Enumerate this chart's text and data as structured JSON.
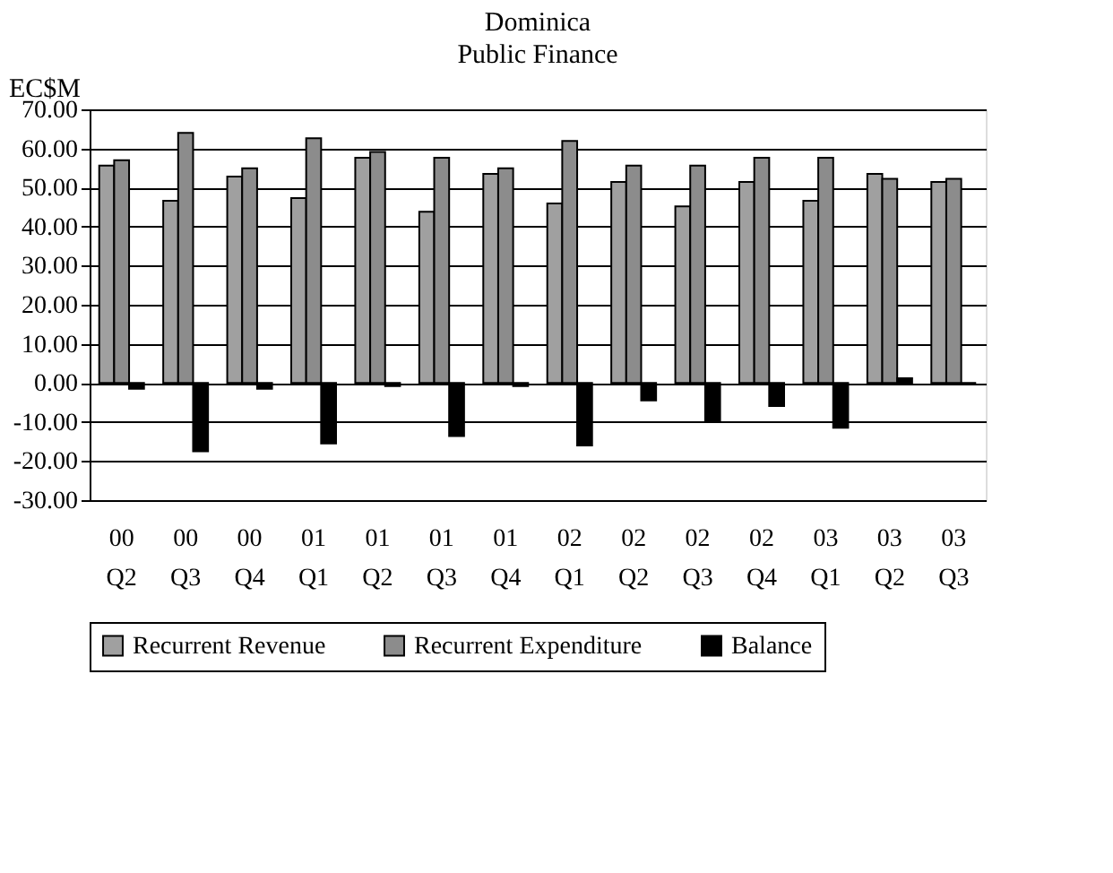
{
  "chart_data": {
    "type": "bar",
    "title": "Dominica",
    "subtitle": "Public Finance",
    "ylabel": "EC$M",
    "categories": [
      "00 Q2",
      "00 Q3",
      "00 Q4",
      "01 Q1",
      "01 Q2",
      "01 Q3",
      "01 Q4",
      "02 Q1",
      "02 Q2",
      "02 Q3",
      "02 Q4",
      "03 Q1",
      "03 Q2",
      "03 Q3"
    ],
    "series": [
      {
        "name": "Recurrent Revenue",
        "color": "#a0a0a0",
        "values": [
          55.6,
          46.6,
          52.8,
          47.3,
          57.6,
          43.8,
          53.5,
          45.9,
          51.4,
          45.2,
          51.4,
          46.6,
          53.5,
          51.4
        ]
      },
      {
        "name": "Recurrent Expenditure",
        "color": "#8c8c8c",
        "values": [
          57.0,
          64.0,
          54.9,
          62.6,
          59.1,
          57.6,
          54.9,
          61.9,
          55.6,
          55.6,
          57.6,
          57.6,
          52.2,
          52.2
        ]
      },
      {
        "name": "Balance",
        "color": "#000000",
        "values": [
          -1.5,
          -17.5,
          -1.5,
          -15.5,
          -0.8,
          -13.6,
          -0.8,
          -16.0,
          -4.5,
          -10.0,
          -5.9,
          -11.5,
          1.2,
          0.0
        ]
      }
    ],
    "ylim": [
      -30,
      70
    ],
    "yticks": [
      {
        "value": -30,
        "label": "-30.00"
      },
      {
        "value": -20,
        "label": "-20.00"
      },
      {
        "value": -10,
        "label": "-10.00"
      },
      {
        "value": 0,
        "label": "0.00"
      },
      {
        "value": 10,
        "label": "10.00"
      },
      {
        "value": 20,
        "label": "20.00"
      },
      {
        "value": 30,
        "label": "30.00"
      },
      {
        "value": 40,
        "label": "40.00"
      },
      {
        "value": 50,
        "label": "50.00"
      },
      {
        "value": 60,
        "label": "60.00"
      },
      {
        "value": 70,
        "label": "70.00"
      }
    ],
    "grid": "y",
    "legend": "bottom"
  }
}
